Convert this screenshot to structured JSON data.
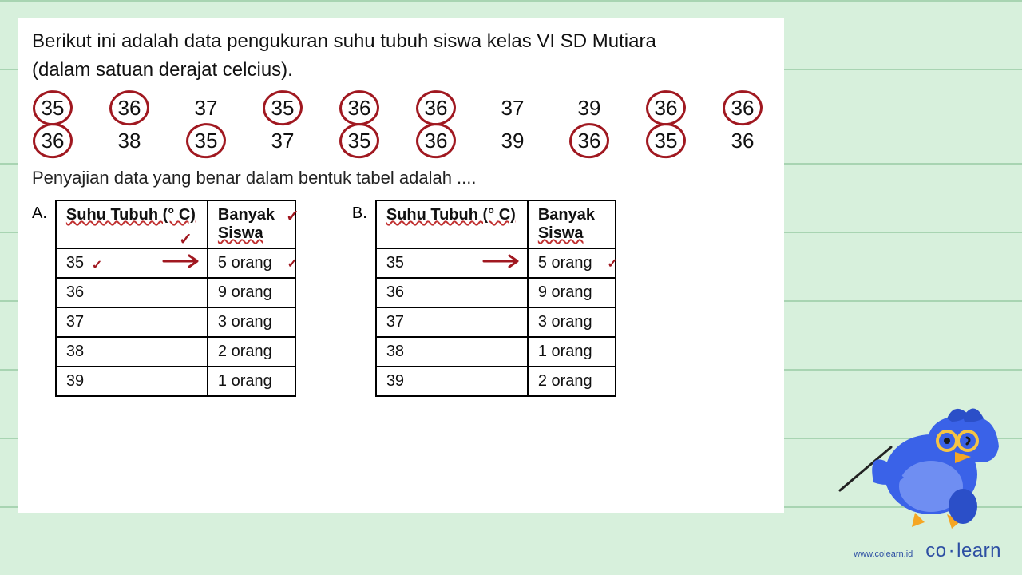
{
  "intro_line1": "Berikut ini adalah data pengukuran suhu tubuh siswa kelas  VI SD Mutiara",
  "intro_line2": "(dalam satuan derajat celcius).",
  "data_row1": [
    {
      "v": "35",
      "circled": true
    },
    {
      "v": "36",
      "circled": true
    },
    {
      "v": "37",
      "circled": false
    },
    {
      "v": "35",
      "circled": true
    },
    {
      "v": "36",
      "circled": true
    },
    {
      "v": "36",
      "circled": true
    },
    {
      "v": "37",
      "circled": false
    },
    {
      "v": "39",
      "circled": false
    },
    {
      "v": "36",
      "circled": true
    },
    {
      "v": "36",
      "circled": true
    }
  ],
  "data_row2": [
    {
      "v": "36",
      "circled": true
    },
    {
      "v": "38",
      "circled": false
    },
    {
      "v": "35",
      "circled": true
    },
    {
      "v": "37",
      "circled": false
    },
    {
      "v": "35",
      "circled": true
    },
    {
      "v": "36",
      "circled": true
    },
    {
      "v": "39",
      "circled": false
    },
    {
      "v": "36",
      "circled": true
    },
    {
      "v": "35",
      "circled": true
    },
    {
      "v": "36",
      "circled": false
    }
  ],
  "subquestion": "Penyajian data yang benar dalam bentuk tabel adalah ....",
  "table_header_col1": "Suhu Tubuh (° C)",
  "table_header_col2_a": "Banyak",
  "table_header_col2_b": "Siswa",
  "optionA": {
    "label": "A.",
    "rows": [
      {
        "temp": "35",
        "count": "5 orang",
        "tick_temp": true,
        "arrow": true,
        "tick_count": true
      },
      {
        "temp": "36",
        "count": "9 orang"
      },
      {
        "temp": "37",
        "count": "3 orang"
      },
      {
        "temp": "38",
        "count": "2 orang"
      },
      {
        "temp": "39",
        "count": "1 orang"
      }
    ],
    "header_tick_col1": true,
    "header_tick_col2": true
  },
  "optionB": {
    "label": "B.",
    "rows": [
      {
        "temp": "35",
        "count": "5 orang",
        "arrow": true,
        "tick_count": true
      },
      {
        "temp": "36",
        "count": "9 orang"
      },
      {
        "temp": "37",
        "count": "3 orang"
      },
      {
        "temp": "38",
        "count": "1 orang"
      },
      {
        "temp": "39",
        "count": "2 orang"
      }
    ]
  },
  "footer_url": "www.colearn.id",
  "footer_logo_a": "co",
  "footer_logo_b": "learn",
  "annotation_color": "#a01820",
  "mascot_colors": {
    "body": "#3a62e8",
    "beak": "#f5a623",
    "glasses": "#f6c444",
    "stick": "#222"
  }
}
